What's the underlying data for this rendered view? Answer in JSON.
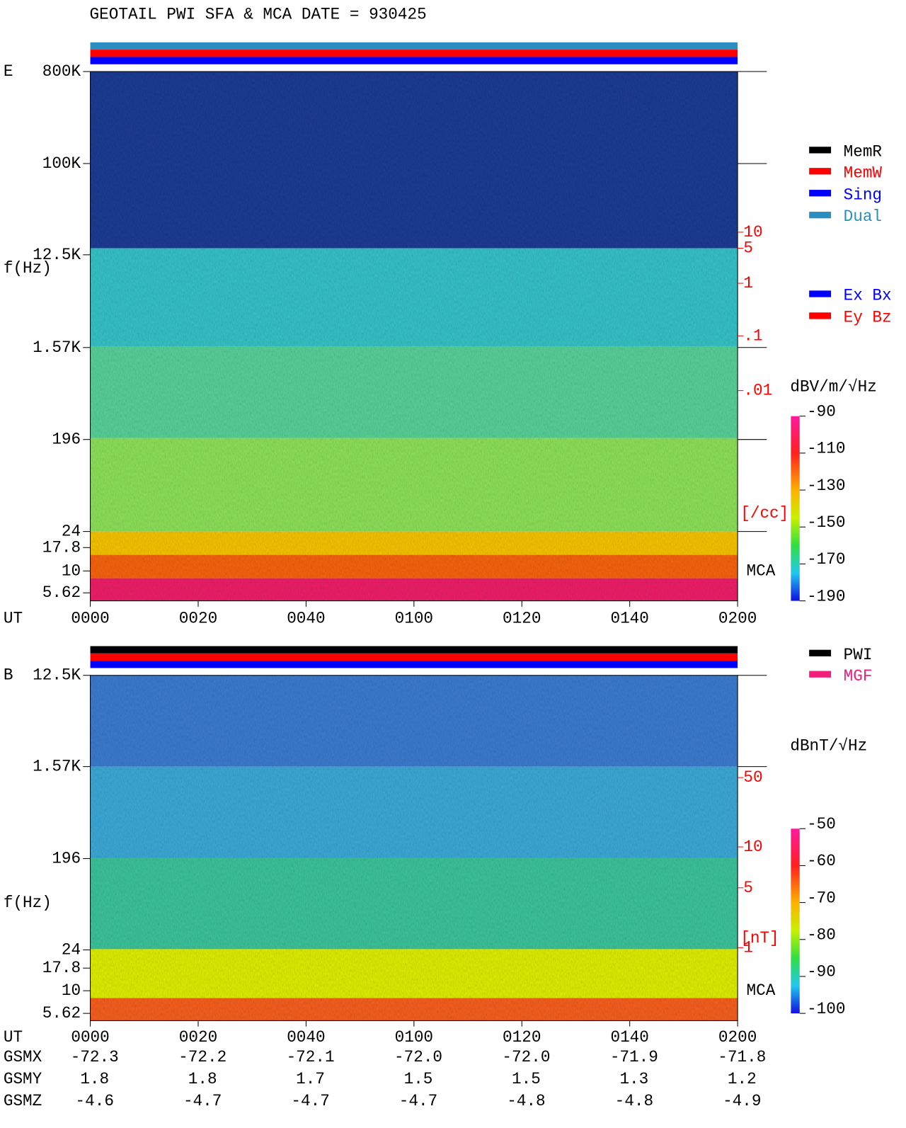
{
  "title": "GEOTAIL  PWI SFA & MCA   DATE = 930425",
  "panels": [
    {
      "label": "E",
      "ylabel": "f(Hz)",
      "xlabel": "UT",
      "yticks": [
        "800K",
        "100K",
        "12.5K",
        "1.57K",
        "196",
        "24",
        "17.8",
        "10",
        "5.62"
      ],
      "xticks": [
        "0000",
        "0020",
        "0040",
        "0100",
        "0120",
        "0140",
        "0200"
      ],
      "right_ticks": [
        "10",
        "5",
        "1",
        ".1",
        ".01"
      ],
      "right_unit": "[/cc]",
      "mca": "MCA",
      "legend": [
        {
          "label": "MemR",
          "color": "#000000"
        },
        {
          "label": "MemW",
          "color": "#ff0000"
        },
        {
          "label": "Sing",
          "color": "#0000ff"
        },
        {
          "label": "Dual",
          "color": "#2a8fc0"
        },
        {
          "label": "Ex Bx",
          "color": "#0000ff"
        },
        {
          "label": "Ey Bz",
          "color": "#ff0000"
        }
      ],
      "colorbar_unit": "dBV/m/√Hz",
      "colorbar_ticks": [
        "-90",
        "-110",
        "-130",
        "-150",
        "-170",
        "-190"
      ]
    },
    {
      "label": "B",
      "ylabel": "f(Hz)",
      "xlabel": "UT",
      "yticks": [
        "12.5K",
        "1.57K",
        "196",
        "24",
        "17.8",
        "10",
        "5.62"
      ],
      "xticks": [
        "0000",
        "0020",
        "0040",
        "0100",
        "0120",
        "0140",
        "0200"
      ],
      "right_ticks": [
        "50",
        "10",
        "5",
        "1"
      ],
      "right_unit": "[nT]",
      "mca": "MCA",
      "legend": [
        {
          "label": "PWI",
          "color": "#000000"
        },
        {
          "label": "MGF",
          "color": "#f0207a"
        }
      ],
      "colorbar_unit": "dBnT/√Hz",
      "colorbar_ticks": [
        "-50",
        "-60",
        "-70",
        "-80",
        "-90",
        "-100"
      ]
    }
  ],
  "orbit": [
    {
      "label": "GSMX",
      "values": [
        "-72.3",
        "-72.2",
        "-72.1",
        "-72.0",
        "-72.0",
        "-71.9",
        "-71.8"
      ]
    },
    {
      "label": "GSMY",
      "values": [
        "1.8",
        "1.8",
        "1.7",
        "1.5",
        "1.5",
        "1.3",
        "1.2"
      ]
    },
    {
      "label": "GSMZ",
      "values": [
        "-4.6",
        "-4.7",
        "-4.7",
        "-4.7",
        "-4.8",
        "-4.8",
        "-4.9"
      ]
    }
  ]
}
